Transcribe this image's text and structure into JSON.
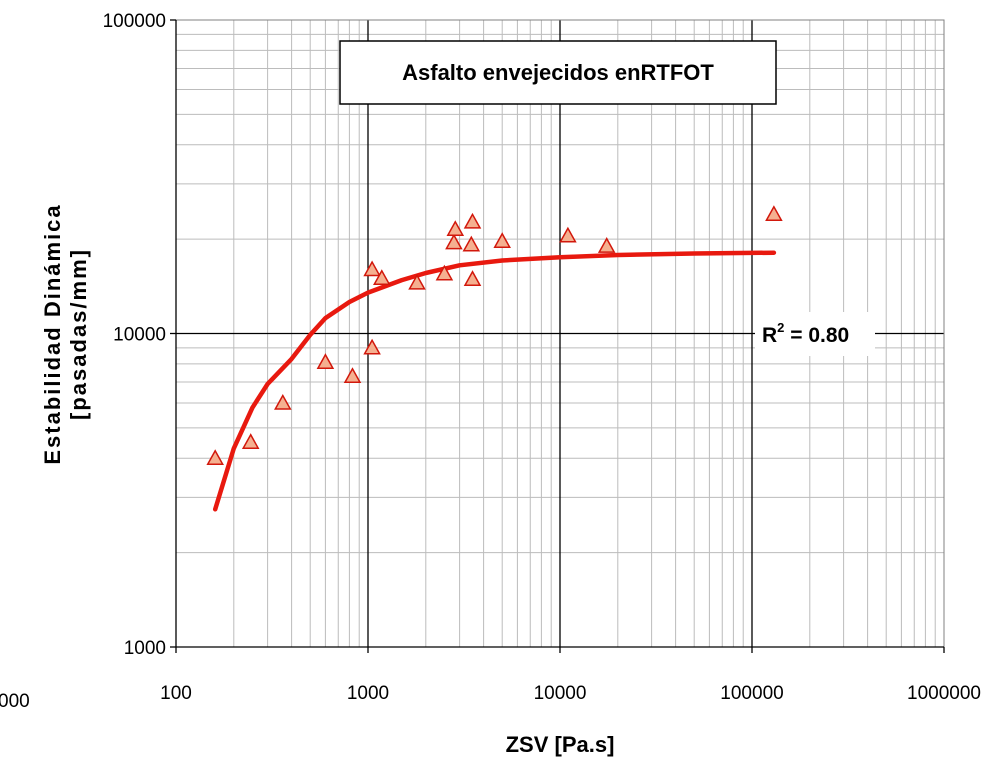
{
  "chart_data": {
    "type": "scatter",
    "title": "Asfalto envejecidos enRTFOT",
    "xlabel": "ZSV [Pa.s]",
    "ylabel_line1": "Estabilidad Dinámica",
    "ylabel_line2": "[pasadas/mm]",
    "x_scale": "log",
    "y_scale": "log",
    "xlim": [
      100,
      1000000
    ],
    "ylim": [
      1000,
      100000
    ],
    "x_ticks": [
      "100",
      "1000",
      "10000",
      "100000",
      "1000000"
    ],
    "y_ticks": [
      "1000",
      "10000",
      "100000"
    ],
    "clipped_tick_label": "000",
    "grid": true,
    "annotation": {
      "prefix": "R",
      "sup": "2",
      "suffix": " = 0.80"
    },
    "colors": {
      "marker_fill": "#f5b090",
      "marker_stroke": "#d2180c",
      "curve": "#e8190f",
      "grid": "#bcbcbc",
      "major_grid": "#000000"
    },
    "series": [
      {
        "marker": "triangle",
        "points": [
          [
            160,
            4000
          ],
          [
            245,
            4500
          ],
          [
            360,
            6000
          ],
          [
            600,
            8100
          ],
          [
            830,
            7300
          ],
          [
            1050,
            9000
          ],
          [
            1050,
            16000
          ],
          [
            1180,
            15000
          ],
          [
            1800,
            14500
          ],
          [
            2500,
            15500
          ],
          [
            2800,
            19500
          ],
          [
            2850,
            21500
          ],
          [
            3450,
            19200
          ],
          [
            3500,
            22700
          ],
          [
            3500,
            14900
          ],
          [
            5000,
            19700
          ],
          [
            11000,
            20500
          ],
          [
            17500,
            19000
          ],
          [
            130000,
            24000
          ]
        ]
      },
      {
        "type": "line",
        "points": [
          [
            160,
            2750
          ],
          [
            200,
            4300
          ],
          [
            250,
            5800
          ],
          [
            300,
            6900
          ],
          [
            400,
            8300
          ],
          [
            500,
            9900
          ],
          [
            600,
            11200
          ],
          [
            800,
            12600
          ],
          [
            1000,
            13500
          ],
          [
            1500,
            14800
          ],
          [
            2000,
            15600
          ],
          [
            3000,
            16500
          ],
          [
            5000,
            17100
          ],
          [
            10000,
            17500
          ],
          [
            20000,
            17800
          ],
          [
            50000,
            18000
          ],
          [
            130000,
            18100
          ]
        ]
      }
    ]
  }
}
